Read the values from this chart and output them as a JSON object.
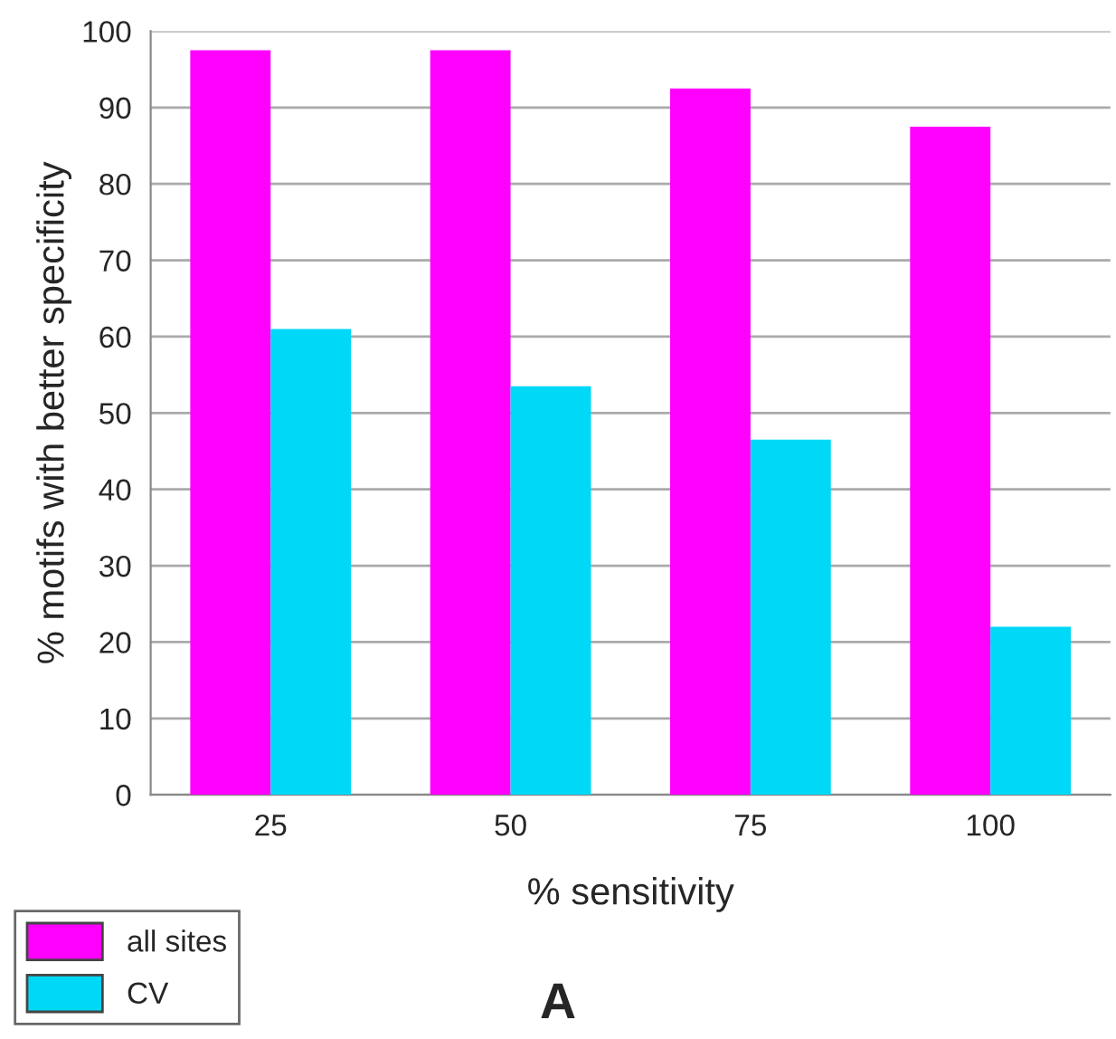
{
  "chart_data": {
    "type": "bar",
    "xlabel": "% sensitivity",
    "ylabel": "% motifs with better specificity",
    "categories": [
      "25",
      "50",
      "75",
      "100"
    ],
    "series": [
      {
        "name": "all sites",
        "color": "#ff00ff",
        "values": [
          97.5,
          97.5,
          92.5,
          87.5
        ]
      },
      {
        "name": "CV",
        "color": "#00d8f8",
        "values": [
          61,
          53.5,
          46.5,
          22
        ]
      }
    ],
    "ylim": [
      0,
      100
    ],
    "yticks": [
      0,
      10,
      20,
      30,
      40,
      50,
      60,
      70,
      80,
      90,
      100
    ],
    "grid": "y",
    "legend": "bottom left",
    "annotations": [
      "A"
    ]
  }
}
